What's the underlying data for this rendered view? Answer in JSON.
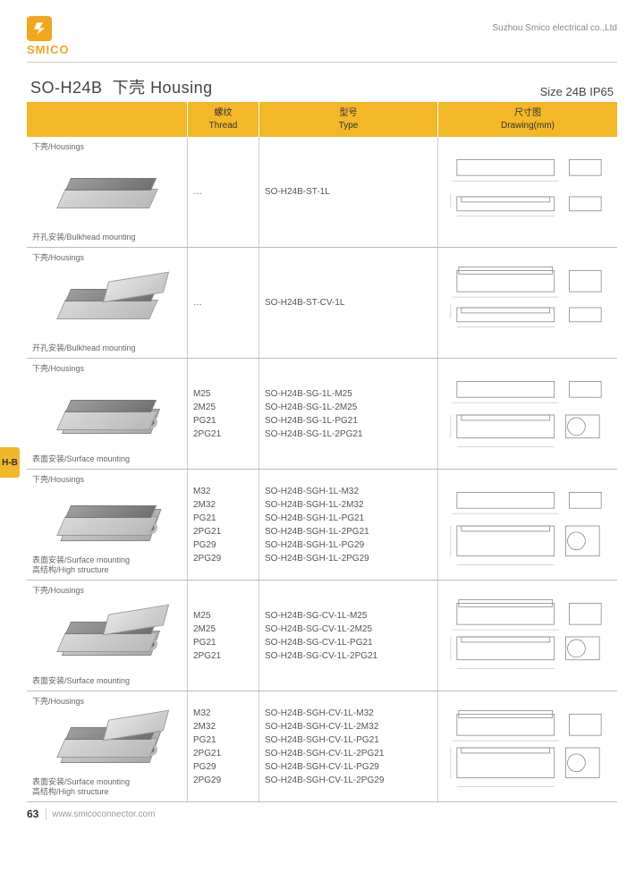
{
  "brand": "SMICO",
  "company": "Suzhou Smico electrical co.,Ltd",
  "title_model": "SO-H24B",
  "title_cn": "下壳",
  "title_en": "Housing",
  "title_size": "Size 24B IP65",
  "side_tab": "H-B",
  "page_num": "63",
  "footer_url": "www.smicoconnector.com",
  "headers": {
    "thread_cn": "螺纹",
    "thread_en": "Thread",
    "type_cn": "型号",
    "type_en": "Type",
    "draw_cn": "尺寸图",
    "draw_en": "Drawing(mm)"
  },
  "rows": [
    {
      "top_label": "下壳/Housings",
      "bot_label": "开孔安装/Bulkhead mounting",
      "sketch": "bulkhead",
      "threads": [
        "…"
      ],
      "types": [
        "SO-H24B-ST-1L"
      ]
    },
    {
      "top_label": "下壳/Housings",
      "bot_label": "开孔安装/Bulkhead mounting",
      "sketch": "bulkhead-cover",
      "threads": [
        "…"
      ],
      "types": [
        "SO-H24B-ST-CV-1L"
      ]
    },
    {
      "top_label": "下壳/Housings",
      "bot_label": "表面安装/Surface mounting",
      "sketch": "surface",
      "threads": [
        "M25",
        "2M25",
        "PG21",
        "2PG21"
      ],
      "types": [
        "SO-H24B-SG-1L-M25",
        "SO-H24B-SG-1L-2M25",
        "SO-H24B-SG-1L-PG21",
        "SO-H24B-SG-1L-2PG21"
      ]
    },
    {
      "top_label": "下壳/Housings",
      "bot_label": "表面安装/Surface mounting\n高结构/High structure",
      "sketch": "surface-high",
      "threads": [
        "M32",
        "2M32",
        "PG21",
        "2PG21",
        "PG29",
        "2PG29"
      ],
      "types": [
        "SO-H24B-SGH-1L-M32",
        "SO-H24B-SGH-1L-2M32",
        "SO-H24B-SGH-1L-PG21",
        "SO-H24B-SGH-1L-2PG21",
        "SO-H24B-SGH-1L-PG29",
        "SO-H24B-SGH-1L-2PG29"
      ]
    },
    {
      "top_label": "下壳/Housings",
      "bot_label": "表面安装/Surface mounting",
      "sketch": "surface-cover",
      "threads": [
        "M25",
        "2M25",
        "PG21",
        "2PG21"
      ],
      "types": [
        "SO-H24B-SG-CV-1L-M25",
        "SO-H24B-SG-CV-1L-2M25",
        "SO-H24B-SG-CV-1L-PG21",
        "SO-H24B-SG-CV-1L-2PG21"
      ]
    },
    {
      "top_label": "下壳/Housings",
      "bot_label": "表面安装/Surface mounting\n高结构/High structure",
      "sketch": "surface-high-cover",
      "threads": [
        "M32",
        "2M32",
        "PG21",
        "2PG21",
        "PG29",
        "2PG29"
      ],
      "types": [
        "SO-H24B-SGH-CV-1L-M32",
        "SO-H24B-SGH-CV-1L-2M32",
        "SO-H24B-SGH-CV-1L-PG21",
        "SO-H24B-SGH-CV-1L-2PG21",
        "SO-H24B-SGH-CV-1L-PG29",
        "SO-H24B-SGH-CV-1L-2PG29"
      ]
    }
  ],
  "colors": {
    "accent": "#f2a61a",
    "header_bg": "#f2b827",
    "border": "#cccccc",
    "text": "#444444"
  }
}
